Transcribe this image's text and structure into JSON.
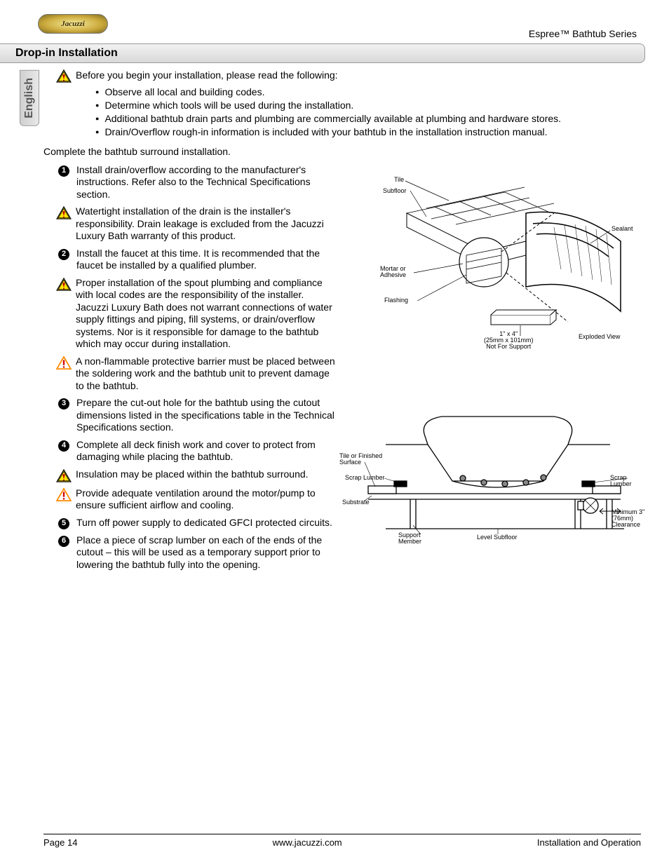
{
  "brand": "Jacuzzi",
  "header_right": "Espree™ Bathtub Series",
  "section_title": "Drop-in Installation",
  "language_tab": "English",
  "intro": "Before you begin your installation, please read the following:",
  "intro_bullets": [
    "Observe all local and building codes.",
    "Determine which tools will be used during the installation.",
    "Additional bathtub drain parts and plumbing are commercially available at plumbing and hardware stores.",
    "Drain/Overflow rough-in information is included with your bathtub in the installation instruction manual."
  ],
  "complete_line": "Complete the bathtub surround installation.",
  "items": [
    {
      "type": "step",
      "num": "1",
      "text": "Install drain/overflow according to the manufacturer's instructions. Refer also to the Technical Specifications section."
    },
    {
      "type": "note",
      "icon": "caution-yellow",
      "text": "Watertight installation of the drain is the installer's responsibility. Drain leakage is excluded from the Jacuzzi Luxury Bath warranty of this product."
    },
    {
      "type": "step",
      "num": "2",
      "text": "Install the faucet at this time. It is recommended that the faucet be installed by a qualified plumber."
    },
    {
      "type": "note",
      "icon": "caution-yellow",
      "text": "Proper installation of the spout plumbing and compliance with local codes are the responsibility of the installer. Jacuzzi Luxury Bath does not warrant connections of water supply fittings and piping, fill systems, or drain/overflow systems. Nor is it responsible for damage to the bathtub which may occur during installation."
    },
    {
      "type": "note",
      "icon": "warning-orange",
      "text": "A non-flammable protective barrier must be placed between the soldering work and the bathtub unit to prevent damage to the bathtub."
    },
    {
      "type": "step",
      "num": "3",
      "text": "Prepare the cut-out hole for the bathtub using the cutout dimensions listed in the specifications table in the Technical Specifications section."
    },
    {
      "type": "step",
      "num": "4",
      "text": "Complete all deck finish work and cover to protect from damaging while placing the bathtub."
    },
    {
      "type": "note",
      "icon": "caution-yellow",
      "text": "Insulation may be placed within the bathtub surround."
    },
    {
      "type": "note",
      "icon": "warning-orange",
      "text": "Provide adequate ventilation around the motor/pump to ensure sufficient airflow and cooling."
    },
    {
      "type": "step",
      "num": "5",
      "text": "Turn off power supply to dedicated GFCI protected circuits."
    },
    {
      "type": "step",
      "num": "6",
      "text": "Place a piece of scrap lumber on each of the ends of the cutout – this will be used as a temporary support prior to lowering the bathtub fully into the opening."
    }
  ],
  "diagram1": {
    "labels": {
      "tile": "Tile",
      "subfloor": "Subfloor",
      "sealant": "Sealant",
      "mortar": "Mortar or\nAdhesive",
      "flashing": "Flashing",
      "lumber": "1\" x 4\"\n(25mm x 101mm)\nNot For Support",
      "exploded": "Exploded View"
    }
  },
  "diagram2": {
    "labels": {
      "tile_surface": "Tile or Finished\nSurface",
      "scrap_lumber_l": "Scrap Lumber",
      "scrap_lumber_r": "Scrap Lumber",
      "substrate": "Substrate",
      "support": "Support\nMember",
      "level": "Level Subfloor",
      "clearance": "Minimum 3\"\n(76mm)\nClearance"
    }
  },
  "footer": {
    "left": "Page 14",
    "center": "www.jacuzzi.com",
    "right": "Installation and Operation"
  },
  "colors": {
    "caution_fill": "#ffe600",
    "caution_stroke": "#000000",
    "caution_mark": "#c00000",
    "warning_fill": "#ffffff",
    "warning_stroke": "#ff8c00",
    "warning_mark": "#d40000"
  }
}
